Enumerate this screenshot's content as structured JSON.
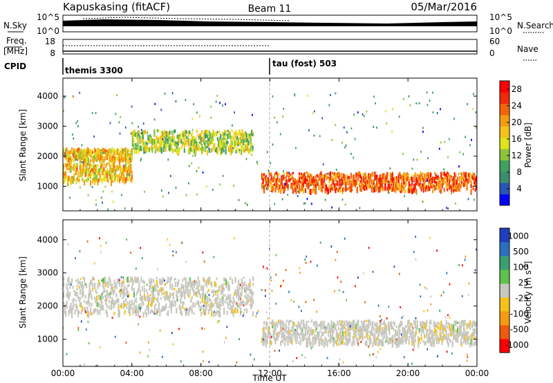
{
  "header": {
    "station": "Kapuskasing (fitACF)",
    "beam": "Beam 11",
    "date": "05/Mar/2016"
  },
  "summary_panels": {
    "nsky_label": "N.Sky",
    "nsky_ticks": [
      "10^5",
      "10^0"
    ],
    "nsearch_label": "N.Search",
    "nsearch_ticks": [
      "10^5",
      "10^0"
    ],
    "freq_label_1": "Freq.",
    "freq_label_2": "[MHz]",
    "freq_ticks": [
      "18",
      "8"
    ],
    "nave_label": "Nave",
    "nave_ticks": [
      "60",
      "0"
    ],
    "cpid_label": "CPID",
    "cpid_modes": [
      {
        "name": "themis 3300",
        "start_hour": 0
      },
      {
        "name": "tau (fost) 503",
        "start_hour": 12
      }
    ]
  },
  "time_axis": {
    "label": "Time UT",
    "ticks": [
      "00:00",
      "04:00",
      "08:00",
      "12:00",
      "16:00",
      "20:00",
      "00:00"
    ],
    "range_hours": [
      0,
      24
    ],
    "mode_change_hour": 12
  },
  "range_axis": {
    "label": "Slant Range [km]",
    "ticks": [
      "1000",
      "2000",
      "3000",
      "4000"
    ],
    "range_km": [
      180,
      4600
    ]
  },
  "power_colorbar": {
    "label": "Power [dB]",
    "ticks": [
      "4",
      "8",
      "12",
      "16",
      "20",
      "24",
      "28"
    ],
    "range": [
      0,
      30
    ],
    "colors": [
      "#0000ff",
      "#2a55b8",
      "#3a8f6e",
      "#40a060",
      "#8cc43c",
      "#dfe41c",
      "#f5c21a",
      "#f59a13",
      "#f2650e",
      "#ee2a08",
      "#ff0000"
    ]
  },
  "velocity_colorbar": {
    "label": "Velocity [m s^-1]",
    "ticks": [
      "1000",
      "500",
      "100",
      "25",
      "-25",
      "-100",
      "-500",
      "-1000"
    ],
    "colors": [
      "#1f3fbf",
      "#2c6fc0",
      "#3aa06f",
      "#5ec34a",
      "#c8c8c0",
      "#f5c21a",
      "#f59a13",
      "#ee5a0e",
      "#ff0000"
    ]
  },
  "chart_data": [
    {
      "type": "heatmap",
      "title": "Power",
      "xlabel": "Time UT",
      "ylabel": "Slant Range [km]",
      "zlabel": "Power [dB]",
      "xlim": [
        0,
        24
      ],
      "ylim": [
        180,
        4600
      ],
      "bands": [
        {
          "hours": [
            0,
            4
          ],
          "ranges_km": [
            [
              1900,
              2300
            ],
            [
              1200,
              1800
            ]
          ],
          "power_db": 18
        },
        {
          "hours": [
            4,
            11
          ],
          "ranges_km": [
            [
              2200,
              2900
            ]
          ],
          "power_db": 14
        },
        {
          "hours": [
            11.5,
            24
          ],
          "ranges_km": [
            [
              900,
              1500
            ]
          ],
          "power_db": 24
        }
      ]
    },
    {
      "type": "heatmap",
      "title": "Velocity",
      "xlabel": "Time UT",
      "ylabel": "Slant Range [km]",
      "zlabel": "Velocity [m s^-1]",
      "xlim": [
        0,
        24
      ],
      "ylim": [
        180,
        4600
      ],
      "bands": [
        {
          "hours": [
            0,
            11
          ],
          "ranges_km": [
            [
              1800,
              2900
            ]
          ],
          "velocity": 0
        },
        {
          "hours": [
            11.5,
            24
          ],
          "ranges_km": [
            [
              900,
              1600
            ]
          ],
          "velocity": 0
        }
      ]
    }
  ]
}
